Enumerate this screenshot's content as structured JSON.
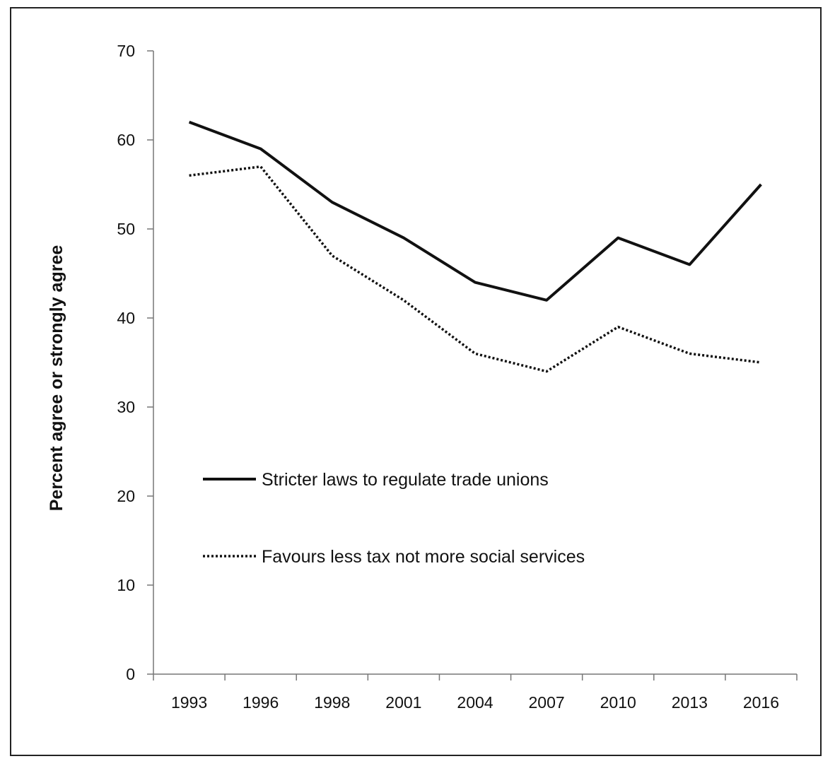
{
  "chart_data": {
    "type": "line",
    "title": "",
    "xlabel": "",
    "ylabel": "Percent agree or strongly agree",
    "ylim": [
      0,
      70
    ],
    "yticks": [
      0,
      10,
      20,
      30,
      40,
      50,
      60,
      70
    ],
    "categories": [
      "1993",
      "1996",
      "1998",
      "2001",
      "2004",
      "2007",
      "2010",
      "2013",
      "2016"
    ],
    "grid": false,
    "legend_placement": "lower-left",
    "series": [
      {
        "name": "Stricter laws to regulate trade unions",
        "style": "solid",
        "color": "#111111",
        "values": [
          62,
          59,
          53,
          49,
          44,
          42,
          49,
          46,
          55
        ]
      },
      {
        "name": "Favours less tax not more social services",
        "style": "dotted",
        "color": "#111111",
        "values": [
          56,
          57,
          47,
          42,
          36,
          34,
          39,
          36,
          35
        ]
      }
    ]
  }
}
